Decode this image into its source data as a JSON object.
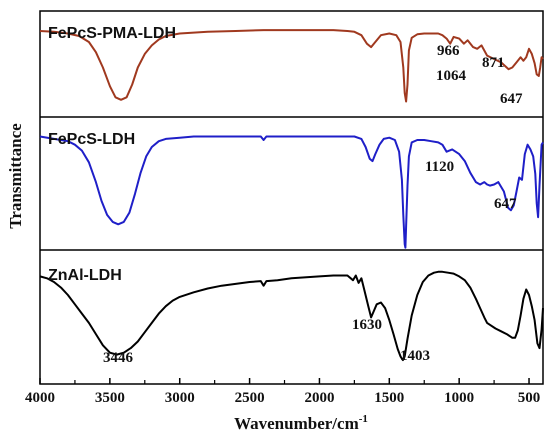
{
  "chart_data": {
    "type": "line",
    "xlabel": "Wavenumber/cm",
    "xlabel_sup": "-1",
    "ylabel": "Transmittance",
    "xlim": [
      4000,
      400
    ],
    "x_ticks": [
      4000,
      3500,
      3000,
      2500,
      2000,
      1500,
      1000,
      500
    ],
    "x_tick_labels": [
      "4000",
      "3500",
      "3000",
      "2500",
      "2000",
      "1500",
      "1000",
      "500"
    ],
    "grid": false,
    "series": [
      {
        "name": "FePcS-PMA-LDH",
        "color": "#a0391f",
        "annotations": [
          {
            "text": "966",
            "x": 966
          },
          {
            "text": "871",
            "x": 871
          },
          {
            "text": "1064",
            "x": 1064
          },
          {
            "text": "647",
            "x": 647
          }
        ],
        "x": [
          4000,
          3900,
          3800,
          3720,
          3650,
          3600,
          3550,
          3500,
          3460,
          3420,
          3380,
          3340,
          3300,
          3250,
          3200,
          3150,
          3100,
          3000,
          2900,
          2800,
          2600,
          2400,
          2200,
          2000,
          1900,
          1800,
          1750,
          1700,
          1660,
          1630,
          1600,
          1560,
          1500,
          1450,
          1420,
          1400,
          1390,
          1380,
          1370,
          1360,
          1340,
          1300,
          1250,
          1200,
          1150,
          1120,
          1090,
          1064,
          1040,
          1000,
          966,
          940,
          900,
          871,
          840,
          800,
          750,
          700,
          660,
          647,
          620,
          590,
          560,
          540,
          520,
          500,
          480,
          460,
          445,
          430,
          420,
          410,
          400
        ],
        "y": [
          0.93,
          0.92,
          0.9,
          0.87,
          0.8,
          0.68,
          0.5,
          0.28,
          0.15,
          0.12,
          0.15,
          0.3,
          0.5,
          0.66,
          0.76,
          0.83,
          0.87,
          0.9,
          0.91,
          0.92,
          0.93,
          0.94,
          0.94,
          0.94,
          0.94,
          0.93,
          0.92,
          0.88,
          0.78,
          0.74,
          0.8,
          0.88,
          0.9,
          0.88,
          0.8,
          0.5,
          0.2,
          0.1,
          0.3,
          0.7,
          0.85,
          0.89,
          0.9,
          0.9,
          0.9,
          0.88,
          0.84,
          0.78,
          0.86,
          0.84,
          0.78,
          0.82,
          0.74,
          0.72,
          0.76,
          0.64,
          0.6,
          0.56,
          0.5,
          0.48,
          0.5,
          0.56,
          0.62,
          0.58,
          0.62,
          0.72,
          0.66,
          0.55,
          0.42,
          0.4,
          0.5,
          0.62,
          0.6
        ]
      },
      {
        "name": "FePcS-LDH",
        "color": "#1f1fc8",
        "annotations": [
          {
            "text": "1120",
            "x": 1120
          },
          {
            "text": "647",
            "x": 647
          }
        ],
        "x": [
          4000,
          3900,
          3800,
          3750,
          3700,
          3650,
          3600,
          3560,
          3520,
          3480,
          3440,
          3400,
          3360,
          3320,
          3280,
          3240,
          3200,
          3150,
          3100,
          3000,
          2900,
          2800,
          2600,
          2420,
          2400,
          2380,
          2200,
          2000,
          1800,
          1750,
          1700,
          1670,
          1640,
          1620,
          1600,
          1570,
          1540,
          1500,
          1460,
          1430,
          1410,
          1400,
          1390,
          1385,
          1380,
          1370,
          1360,
          1340,
          1300,
          1250,
          1200,
          1150,
          1120,
          1090,
          1050,
          1000,
          960,
          920,
          880,
          850,
          820,
          800,
          780,
          750,
          720,
          680,
          650,
          630,
          610,
          590,
          570,
          550,
          530,
          510,
          490,
          470,
          455,
          445,
          435,
          425,
          410,
          400
        ],
        "y": [
          0.97,
          0.95,
          0.93,
          0.9,
          0.85,
          0.75,
          0.58,
          0.42,
          0.3,
          0.24,
          0.22,
          0.24,
          0.32,
          0.48,
          0.66,
          0.8,
          0.88,
          0.93,
          0.95,
          0.96,
          0.97,
          0.97,
          0.97,
          0.97,
          0.94,
          0.97,
          0.97,
          0.97,
          0.97,
          0.97,
          0.95,
          0.88,
          0.78,
          0.76,
          0.82,
          0.9,
          0.95,
          0.96,
          0.94,
          0.84,
          0.6,
          0.3,
          0.05,
          0.02,
          0.2,
          0.55,
          0.8,
          0.92,
          0.94,
          0.94,
          0.93,
          0.92,
          0.9,
          0.84,
          0.86,
          0.82,
          0.76,
          0.66,
          0.58,
          0.56,
          0.58,
          0.56,
          0.55,
          0.56,
          0.58,
          0.5,
          0.36,
          0.34,
          0.38,
          0.5,
          0.62,
          0.6,
          0.82,
          0.9,
          0.86,
          0.8,
          0.65,
          0.4,
          0.28,
          0.55,
          0.9,
          0.92
        ]
      },
      {
        "name": "ZnAl-LDH",
        "color": "#000000",
        "annotations": [
          {
            "text": "3446",
            "x": 3446
          },
          {
            "text": "1630",
            "x": 1630
          },
          {
            "text": "1403",
            "x": 1403
          }
        ],
        "x": [
          4000,
          3950,
          3900,
          3850,
          3800,
          3750,
          3700,
          3650,
          3600,
          3550,
          3500,
          3450,
          3400,
          3350,
          3300,
          3250,
          3200,
          3150,
          3100,
          3050,
          3000,
          2900,
          2800,
          2700,
          2600,
          2500,
          2420,
          2400,
          2380,
          2300,
          2200,
          2000,
          1900,
          1800,
          1760,
          1740,
          1720,
          1700,
          1680,
          1650,
          1630,
          1610,
          1590,
          1560,
          1530,
          1500,
          1470,
          1440,
          1420,
          1403,
          1390,
          1370,
          1340,
          1300,
          1260,
          1220,
          1180,
          1150,
          1120,
          1080,
          1040,
          1000,
          960,
          920,
          880,
          850,
          820,
          800,
          780,
          740,
          700,
          660,
          620,
          600,
          580,
          560,
          540,
          520,
          500,
          480,
          460,
          440,
          425,
          410,
          400
        ],
        "y": [
          0.92,
          0.9,
          0.86,
          0.8,
          0.72,
          0.62,
          0.52,
          0.42,
          0.3,
          0.18,
          0.1,
          0.08,
          0.1,
          0.15,
          0.22,
          0.32,
          0.42,
          0.52,
          0.6,
          0.66,
          0.7,
          0.75,
          0.79,
          0.82,
          0.84,
          0.86,
          0.87,
          0.82,
          0.87,
          0.88,
          0.9,
          0.92,
          0.93,
          0.93,
          0.88,
          0.93,
          0.85,
          0.9,
          0.78,
          0.6,
          0.48,
          0.55,
          0.62,
          0.64,
          0.58,
          0.45,
          0.3,
          0.14,
          0.06,
          0.02,
          0.06,
          0.25,
          0.5,
          0.72,
          0.86,
          0.93,
          0.96,
          0.97,
          0.97,
          0.96,
          0.95,
          0.92,
          0.88,
          0.8,
          0.68,
          0.58,
          0.48,
          0.42,
          0.4,
          0.36,
          0.33,
          0.3,
          0.26,
          0.26,
          0.34,
          0.5,
          0.68,
          0.78,
          0.72,
          0.6,
          0.45,
          0.2,
          0.15,
          0.35,
          0.58
        ]
      }
    ]
  }
}
